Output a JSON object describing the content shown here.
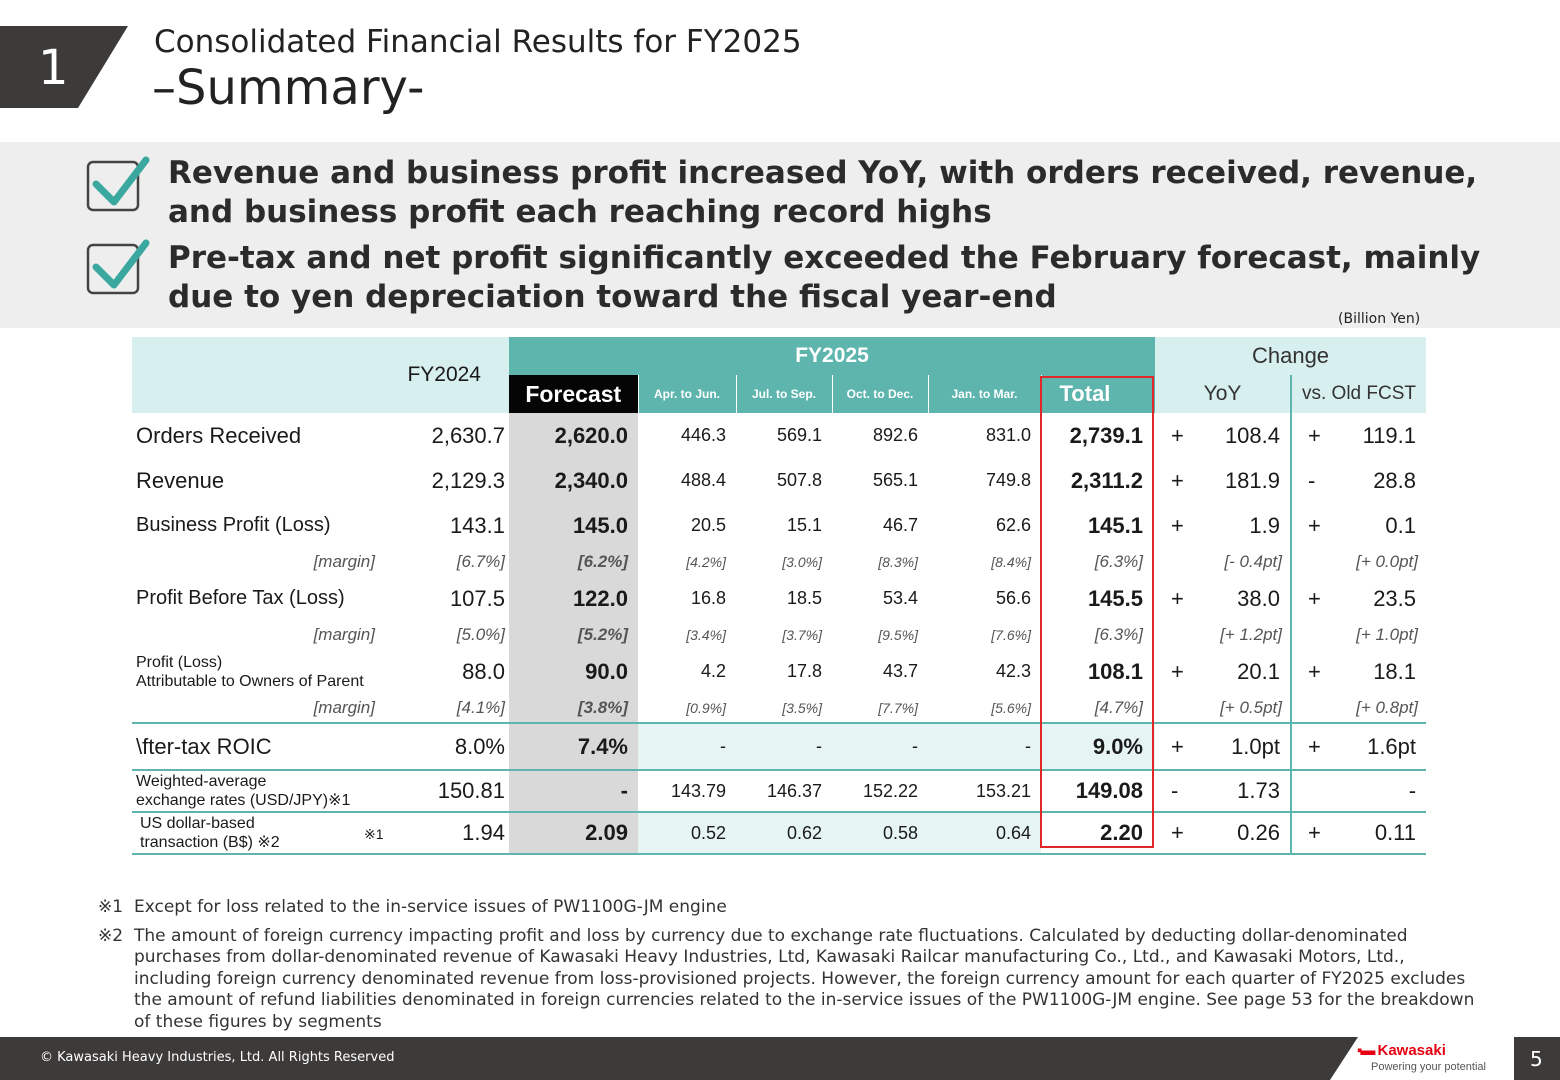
{
  "section": {
    "number": "1"
  },
  "title": {
    "line1": "Consolidated Financial Results for FY2025",
    "line2": "–Summary-"
  },
  "highlights": [
    {
      "line1": "Revenue and business profit increased YoY, with orders received, revenue,",
      "line2": "and business profit each reaching record highs",
      "icon": "checkbox-checked-icon"
    },
    {
      "line1": "Pre-tax and net profit significantly exceeded the February forecast, mainly",
      "line2": "due to yen depreciation toward the fiscal year-end",
      "icon": "checkbox-checked-icon"
    }
  ],
  "unit": "(Billion Yen)",
  "table": {
    "headers": {
      "fy2024": "FY2024",
      "fy2025": "FY2025",
      "change": "Change",
      "forecast": "Forecast",
      "q1": "Apr. to Jun.",
      "q2": "Jul. to Sep.",
      "q3": "Oct. to Dec.",
      "q4": "Jan. to Mar.",
      "total": "Total",
      "yoy": "YoY",
      "vs_old": "vs. Old FCST"
    },
    "rows": {
      "orders": {
        "label": "Orders Received",
        "fy2024": "2,630.7",
        "forecast": "2,620.0",
        "q1": "446.3",
        "q2": "569.1",
        "q3": "892.6",
        "q4": "831.0",
        "total": "2,739.1",
        "yoy_sign": "+",
        "yoy": "108.4",
        "old_sign": "+",
        "old": "119.1"
      },
      "revenue": {
        "label": "Revenue",
        "fy2024": "2,129.3",
        "forecast": "2,340.0",
        "q1": "488.4",
        "q2": "507.8",
        "q3": "565.1",
        "q4": "749.8",
        "total": "2,311.2",
        "yoy_sign": "+",
        "yoy": "181.9",
        "old_sign": "-",
        "old": "28.8"
      },
      "bp": {
        "label": "Business Profit (Loss)",
        "fy2024": "143.1",
        "forecast": "145.0",
        "q1": "20.5",
        "q2": "15.1",
        "q3": "46.7",
        "q4": "62.6",
        "total": "145.1",
        "yoy_sign": "+",
        "yoy": "1.9",
        "old_sign": "+",
        "old": "0.1"
      },
      "bp_margin": {
        "label": "[margin]",
        "fy2024": "[6.7%]",
        "forecast": "[6.2%]",
        "q1": "[4.2%]",
        "q2": "[3.0%]",
        "q3": "[8.3%]",
        "q4": "[8.4%]",
        "total": "[6.3%]",
        "yoy": "[- 0.4pt]",
        "old": "[+ 0.0pt]"
      },
      "pbt": {
        "label": "Profit Before Tax (Loss)",
        "fy2024": "107.5",
        "forecast": "122.0",
        "q1": "16.8",
        "q2": "18.5",
        "q3": "53.4",
        "q4": "56.6",
        "total": "145.5",
        "yoy_sign": "+",
        "yoy": "38.0",
        "old_sign": "+",
        "old": "23.5"
      },
      "pbt_margin": {
        "label": "[margin]",
        "fy2024": "[5.0%]",
        "forecast": "[5.2%]",
        "q1": "[3.4%]",
        "q2": "[3.7%]",
        "q3": "[9.5%]",
        "q4": "[7.6%]",
        "total": "[6.3%]",
        "yoy": "[+ 1.2pt]",
        "old": "[+ 1.0pt]"
      },
      "np": {
        "label1": "Profit (Loss)",
        "label2": "Attributable to Owners of Parent",
        "fy2024": "88.0",
        "forecast": "90.0",
        "q1": "4.2",
        "q2": "17.8",
        "q3": "43.7",
        "q4": "42.3",
        "total": "108.1",
        "yoy_sign": "+",
        "yoy": "20.1",
        "old_sign": "+",
        "old": "18.1"
      },
      "np_margin": {
        "label": "[margin]",
        "fy2024": "[4.1%]",
        "forecast": "[3.8%]",
        "q1": "[0.9%]",
        "q2": "[3.5%]",
        "q3": "[7.7%]",
        "q4": "[5.6%]",
        "total": "[4.7%]",
        "yoy": "[+ 0.5pt]",
        "old": "[+ 0.8pt]"
      },
      "roic": {
        "label": "\\fter-tax ROIC",
        "fy2024": "8.0%",
        "forecast": "7.4%",
        "q1": "-",
        "q2": "-",
        "q3": "-",
        "q4": "-",
        "total": "9.0%",
        "yoy_sign": "+",
        "yoy": "1.0pt",
        "old_sign": "+",
        "old": "1.6pt"
      },
      "fx": {
        "label1": "Weighted-average",
        "label2": "exchange rates (USD/JPY)※1",
        "fy2024": "150.81",
        "forecast": "-",
        "q1": "143.79",
        "q2": "146.37",
        "q3": "152.22",
        "q4": "153.21",
        "total": "149.08",
        "yoy_sign": "-",
        "yoy": "1.73",
        "old_sign": "",
        "old": "-"
      },
      "usd": {
        "label1": "US dollar-based",
        "label2": "transaction (B$) ※2",
        "mark": "※1",
        "fy2024": "1.94",
        "forecast": "2.09",
        "q1": "0.52",
        "q2": "0.62",
        "q3": "0.58",
        "q4": "0.64",
        "total": "2.20",
        "yoy_sign": "+",
        "yoy": "0.26",
        "old_sign": "+",
        "old": "0.11"
      }
    }
  },
  "notes": [
    {
      "mark": "※1",
      "text": "Except for loss related to the in-service issues of PW1100G-JM engine"
    },
    {
      "mark": "※2",
      "text": "The amount of foreign currency impacting profit and loss by currency due to exchange rate fluctuations. Calculated by deducting dollar-denominated purchases from dollar-denominated revenue of Kawasaki Heavy Industries, Ltd, Kawasaki Railcar manufacturing Co., Ltd., and Kawasaki Motors, Ltd., including foreign currency denominated revenue from loss-provisioned projects. However, the foreign currency amount for each quarter of FY2025 excludes the amount of refund liabilities denominated in foreign currencies related to the in-service issues of the PW1100G-JM engine. See page 53 for the breakdown of these figures by segments"
    }
  ],
  "footer": {
    "copyright": "© Kawasaki Heavy Industries, Ltd. All Rights Reserved",
    "logo_name": "Kawasaki",
    "logo_tagline": "Powering your potential",
    "page": "5"
  },
  "colors": {
    "teal": "#5db5ad",
    "teal_light": "#d7efee",
    "dark": "#3d3b3a",
    "red": "#e02828",
    "brand_red": "#e60012"
  }
}
